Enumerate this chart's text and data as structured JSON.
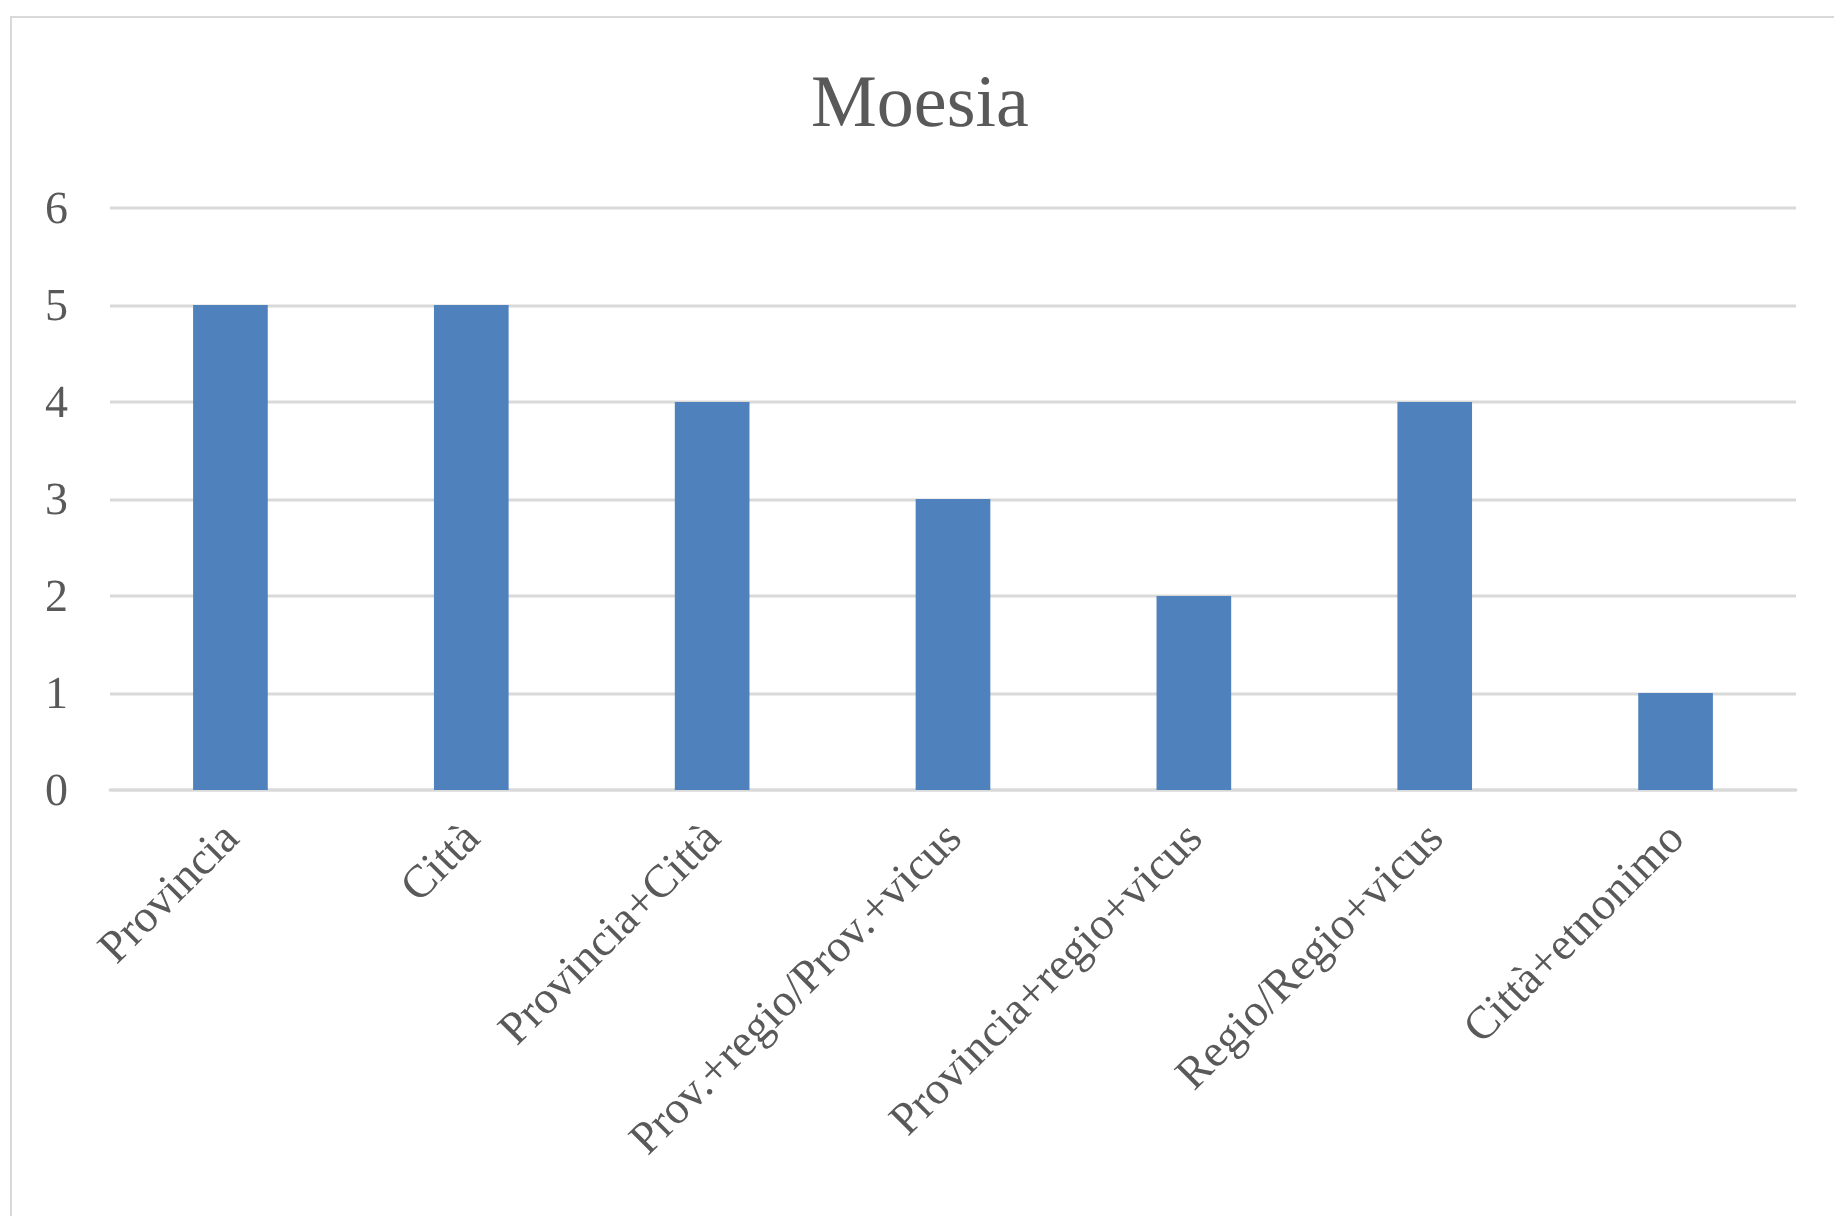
{
  "chart_data": {
    "type": "bar",
    "title": "Moesia",
    "categories": [
      "Provincia",
      "Città",
      "Provincia+Città",
      "Prov.+regio/Prov.+vicus",
      "Provincia+regio+vicus",
      "Regio/Regio+vicus",
      "Città+etnonimo"
    ],
    "values": [
      5,
      5,
      4,
      3,
      2,
      4,
      1
    ],
    "color": "#4f81bd",
    "ylim": [
      0,
      6
    ],
    "yticks": [
      0,
      1,
      2,
      3,
      4,
      5,
      6
    ],
    "grid": "y"
  }
}
